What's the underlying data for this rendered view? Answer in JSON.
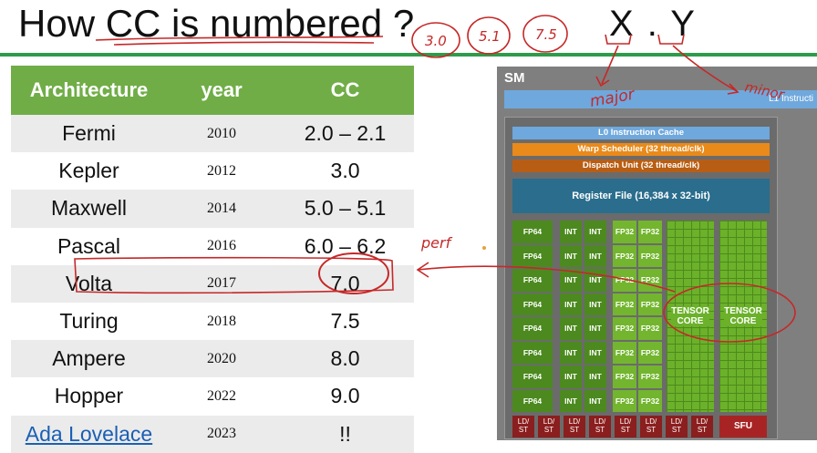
{
  "slide": {
    "title": "How CC is numbered ?",
    "xy_notation": "X . Y"
  },
  "table": {
    "headers": [
      "Architecture",
      "year",
      "CC"
    ],
    "rows": [
      {
        "arch": "Fermi",
        "year": "2010",
        "cc": "2.0 – 2.1"
      },
      {
        "arch": "Kepler",
        "year": "2012",
        "cc": "3.0"
      },
      {
        "arch": "Maxwell",
        "year": "2014",
        "cc": "5.0 – 5.1"
      },
      {
        "arch": "Pascal",
        "year": "2016",
        "cc": "6.0 – 6.2"
      },
      {
        "arch": "Volta",
        "year": "2017",
        "cc": "7.0"
      },
      {
        "arch": "Turing",
        "year": "2018",
        "cc": "7.5"
      },
      {
        "arch": "Ampere",
        "year": "2020",
        "cc": "8.0"
      },
      {
        "arch": "Hopper",
        "year": "2022",
        "cc": "9.0"
      },
      {
        "arch": "Ada Lovelace",
        "year": "2023",
        "cc": "!!"
      }
    ]
  },
  "annotations": {
    "circled_versions": [
      "3.0",
      "5.1",
      "7.5"
    ],
    "major": "major",
    "minor": "minor",
    "perf": "perf"
  },
  "sm": {
    "label": "SM",
    "l1": "L1 Instructi",
    "l0": "L0 Instruction Cache",
    "warp": "Warp Scheduler (32 thread/clk)",
    "dispatch": "Dispatch Unit (32 thread/clk)",
    "register_file": "Register File (16,384 x 32-bit)",
    "fp64": "FP64",
    "int": "INT",
    "fp32": "FP32",
    "tensor": "TENSOR\nCORE",
    "ldst": "LD/\nST",
    "sfu": "SFU"
  },
  "colors": {
    "header_green": "#70ad47",
    "rule_green": "#2e9b4a",
    "ink_red": "#c62828",
    "link_blue": "#1a5fb4"
  }
}
